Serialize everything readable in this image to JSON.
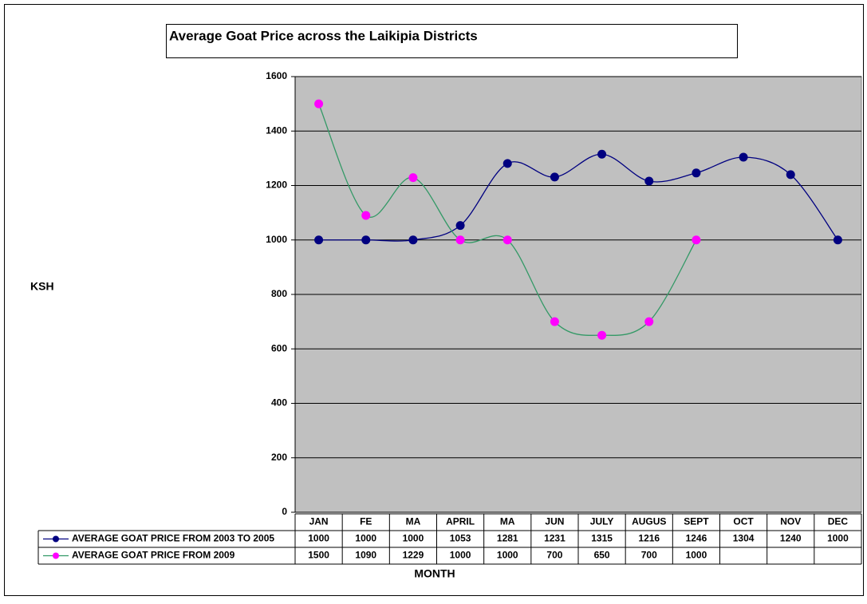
{
  "chart_data": {
    "type": "line",
    "title": "Average Goat Price across the Laikipia Districts",
    "y_label": "KSH",
    "x_label": "MONTH",
    "categories": [
      "JAN",
      "FE",
      "MA",
      "APRIL",
      "MA",
      "JUN",
      "JULY",
      "AUGUS",
      "SEPT",
      "OCT",
      "NOV",
      "DEC"
    ],
    "series": [
      {
        "name": "AVERAGE GOAT PRICE FROM 2003 TO 2005",
        "color": "#000080",
        "marker_color": "#000080",
        "values": [
          1000,
          1000,
          1000,
          1053,
          1281,
          1231,
          1315,
          1216,
          1246,
          1304,
          1240,
          1000
        ]
      },
      {
        "name": "AVERAGE GOAT PRICE FROM 2009",
        "color": "#339966",
        "marker_color": "#ff00ff",
        "values": [
          1500,
          1090,
          1229,
          1000,
          1000,
          700,
          650,
          700,
          1000,
          null,
          null,
          null
        ]
      }
    ],
    "ylim": [
      0,
      1600
    ],
    "yticks": [
      0,
      200,
      400,
      600,
      800,
      1000,
      1200,
      1400,
      1600
    ],
    "grid": true,
    "smooth": true,
    "plot_background": "#c0c0c0"
  }
}
